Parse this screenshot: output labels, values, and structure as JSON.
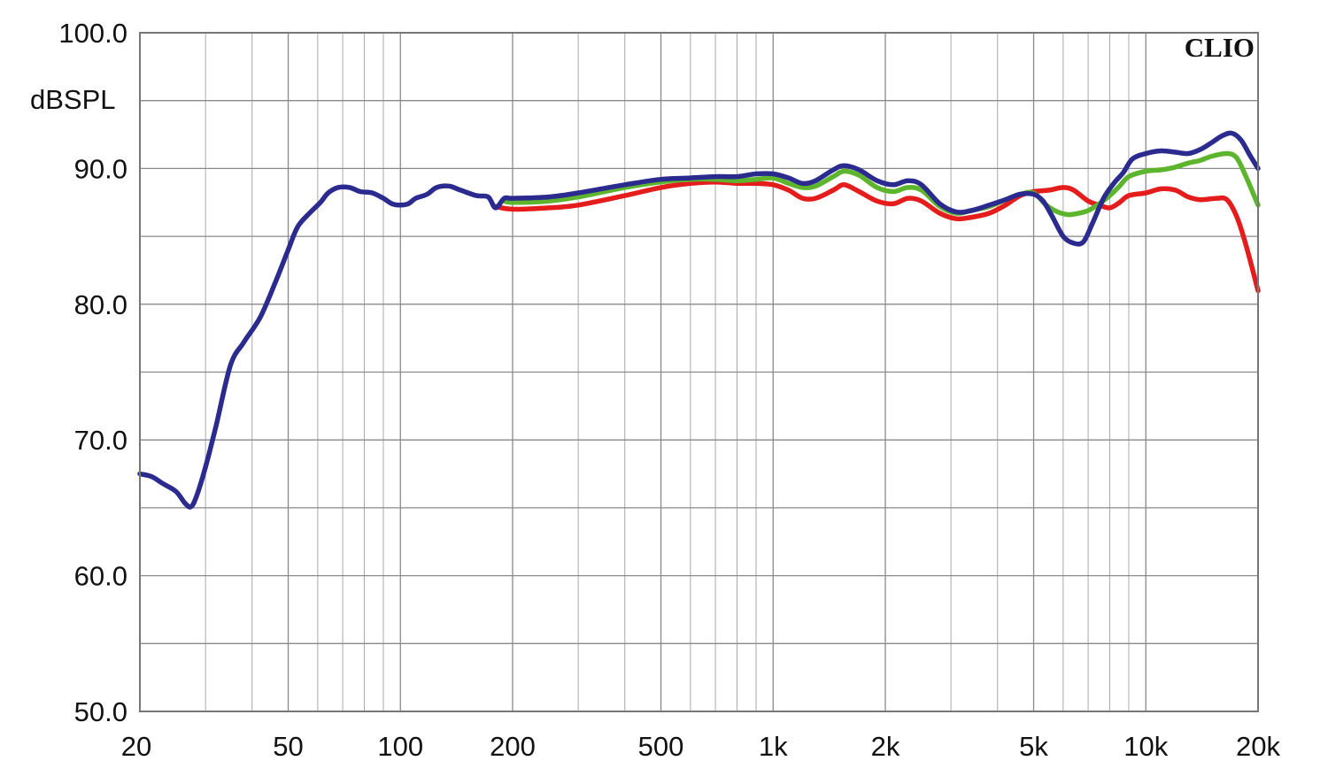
{
  "chart_data": {
    "type": "line",
    "title": "",
    "xlabel": "",
    "ylabel": "dBSPL",
    "brand": "CLIO",
    "x_scale": "log",
    "xlim": [
      20,
      20000
    ],
    "ylim": [
      50,
      100
    ],
    "grid": true,
    "x_ticks": [
      {
        "value": 20,
        "label": "20"
      },
      {
        "value": 50,
        "label": "50"
      },
      {
        "value": 100,
        "label": "100"
      },
      {
        "value": 200,
        "label": "200"
      },
      {
        "value": 500,
        "label": "500"
      },
      {
        "value": 1000,
        "label": "1k"
      },
      {
        "value": 2000,
        "label": "2k"
      },
      {
        "value": 5000,
        "label": "5k"
      },
      {
        "value": 10000,
        "label": "10k"
      },
      {
        "value": 20000,
        "label": "20k"
      }
    ],
    "y_ticks": [
      {
        "value": 100,
        "label": "100.0"
      },
      {
        "value": 90,
        "label": "90.0"
      },
      {
        "value": 80,
        "label": "80.0"
      },
      {
        "value": 70,
        "label": "70.0"
      },
      {
        "value": 60,
        "label": "60.0"
      },
      {
        "value": 50,
        "label": "50.0"
      }
    ],
    "series": [
      {
        "color": "#e51c1c",
        "points": [
          [
            180,
            87.2
          ],
          [
            200,
            87.0
          ],
          [
            250,
            87.1
          ],
          [
            300,
            87.3
          ],
          [
            400,
            88.0
          ],
          [
            500,
            88.6
          ],
          [
            600,
            88.9
          ],
          [
            700,
            89.0
          ],
          [
            800,
            88.9
          ],
          [
            900,
            88.9
          ],
          [
            1000,
            88.8
          ],
          [
            1100,
            88.4
          ],
          [
            1200,
            87.8
          ],
          [
            1300,
            87.8
          ],
          [
            1450,
            88.4
          ],
          [
            1550,
            88.8
          ],
          [
            1700,
            88.3
          ],
          [
            1900,
            87.6
          ],
          [
            2100,
            87.4
          ],
          [
            2300,
            87.8
          ],
          [
            2500,
            87.6
          ],
          [
            2800,
            86.7
          ],
          [
            3100,
            86.3
          ],
          [
            3400,
            86.4
          ],
          [
            3800,
            86.7
          ],
          [
            4200,
            87.3
          ],
          [
            4600,
            88.0
          ],
          [
            5000,
            88.3
          ],
          [
            5500,
            88.4
          ],
          [
            6000,
            88.6
          ],
          [
            6400,
            88.4
          ],
          [
            7000,
            87.6
          ],
          [
            7500,
            87.3
          ],
          [
            8000,
            87.1
          ],
          [
            8500,
            87.5
          ],
          [
            9000,
            88.0
          ],
          [
            10000,
            88.2
          ],
          [
            11000,
            88.5
          ],
          [
            12000,
            88.4
          ],
          [
            13000,
            87.9
          ],
          [
            14000,
            87.7
          ],
          [
            15500,
            87.8
          ],
          [
            16500,
            87.7
          ],
          [
            17500,
            86.5
          ],
          [
            18500,
            84.5
          ],
          [
            20000,
            81.0
          ]
        ]
      },
      {
        "color": "#5db52e",
        "points": [
          [
            190,
            87.6
          ],
          [
            200,
            87.5
          ],
          [
            250,
            87.6
          ],
          [
            300,
            87.9
          ],
          [
            400,
            88.6
          ],
          [
            500,
            89.0
          ],
          [
            600,
            89.2
          ],
          [
            700,
            89.2
          ],
          [
            800,
            89.1
          ],
          [
            900,
            89.2
          ],
          [
            1000,
            89.3
          ],
          [
            1100,
            88.9
          ],
          [
            1200,
            88.6
          ],
          [
            1300,
            88.7
          ],
          [
            1450,
            89.4
          ],
          [
            1550,
            89.8
          ],
          [
            1700,
            89.5
          ],
          [
            1900,
            88.6
          ],
          [
            2100,
            88.3
          ],
          [
            2300,
            88.6
          ],
          [
            2500,
            88.4
          ],
          [
            2800,
            87.2
          ],
          [
            3100,
            86.7
          ],
          [
            3400,
            86.9
          ],
          [
            3800,
            87.2
          ],
          [
            4200,
            87.7
          ],
          [
            4600,
            88.1
          ],
          [
            5000,
            88.2
          ],
          [
            5400,
            87.3
          ],
          [
            5800,
            86.8
          ],
          [
            6200,
            86.6
          ],
          [
            6600,
            86.7
          ],
          [
            7000,
            86.9
          ],
          [
            7500,
            87.4
          ],
          [
            8000,
            88.0
          ],
          [
            8500,
            88.7
          ],
          [
            9000,
            89.4
          ],
          [
            10000,
            89.8
          ],
          [
            11000,
            89.9
          ],
          [
            12000,
            90.1
          ],
          [
            13000,
            90.4
          ],
          [
            14000,
            90.6
          ],
          [
            15000,
            90.9
          ],
          [
            16500,
            91.1
          ],
          [
            17500,
            90.8
          ],
          [
            18500,
            89.5
          ],
          [
            20000,
            87.3
          ]
        ]
      },
      {
        "color": "#2b2b8f",
        "points": [
          [
            20,
            67.5
          ],
          [
            21.5,
            67.3
          ],
          [
            23,
            66.8
          ],
          [
            25,
            66.2
          ],
          [
            26.5,
            65.3
          ],
          [
            27.5,
            65.1
          ],
          [
            28.5,
            66.0
          ],
          [
            30,
            68.0
          ],
          [
            32,
            71.0
          ],
          [
            35,
            75.5
          ],
          [
            38,
            77.2
          ],
          [
            42,
            79.0
          ],
          [
            46,
            81.5
          ],
          [
            50,
            84.0
          ],
          [
            53,
            85.7
          ],
          [
            57,
            86.7
          ],
          [
            61,
            87.5
          ],
          [
            64,
            88.2
          ],
          [
            68,
            88.6
          ],
          [
            73,
            88.6
          ],
          [
            78,
            88.3
          ],
          [
            84,
            88.2
          ],
          [
            90,
            87.8
          ],
          [
            95,
            87.4
          ],
          [
            100,
            87.3
          ],
          [
            105,
            87.4
          ],
          [
            110,
            87.8
          ],
          [
            118,
            88.1
          ],
          [
            125,
            88.6
          ],
          [
            135,
            88.7
          ],
          [
            145,
            88.4
          ],
          [
            160,
            88.0
          ],
          [
            172,
            87.9
          ],
          [
            180,
            87.1
          ],
          [
            190,
            87.8
          ],
          [
            200,
            87.8
          ],
          [
            250,
            87.9
          ],
          [
            300,
            88.2
          ],
          [
            400,
            88.8
          ],
          [
            500,
            89.2
          ],
          [
            600,
            89.3
          ],
          [
            700,
            89.4
          ],
          [
            800,
            89.4
          ],
          [
            900,
            89.6
          ],
          [
            1000,
            89.6
          ],
          [
            1100,
            89.3
          ],
          [
            1200,
            88.9
          ],
          [
            1300,
            89.1
          ],
          [
            1450,
            89.9
          ],
          [
            1550,
            90.2
          ],
          [
            1700,
            89.9
          ],
          [
            1900,
            89.1
          ],
          [
            2100,
            88.8
          ],
          [
            2300,
            89.1
          ],
          [
            2500,
            88.8
          ],
          [
            2800,
            87.4
          ],
          [
            3100,
            86.8
          ],
          [
            3400,
            86.9
          ],
          [
            3800,
            87.3
          ],
          [
            4200,
            87.7
          ],
          [
            4600,
            88.1
          ],
          [
            5000,
            88.1
          ],
          [
            5300,
            87.6
          ],
          [
            5600,
            86.5
          ],
          [
            6000,
            85.0
          ],
          [
            6400,
            84.5
          ],
          [
            6800,
            84.6
          ],
          [
            7200,
            86.0
          ],
          [
            7700,
            87.8
          ],
          [
            8200,
            88.9
          ],
          [
            8700,
            89.7
          ],
          [
            9200,
            90.7
          ],
          [
            10000,
            91.1
          ],
          [
            11000,
            91.3
          ],
          [
            12000,
            91.2
          ],
          [
            13000,
            91.1
          ],
          [
            14000,
            91.4
          ],
          [
            15000,
            91.9
          ],
          [
            16000,
            92.4
          ],
          [
            17000,
            92.6
          ],
          [
            18000,
            92.1
          ],
          [
            19000,
            91.0
          ],
          [
            20000,
            90.0
          ]
        ]
      }
    ]
  }
}
